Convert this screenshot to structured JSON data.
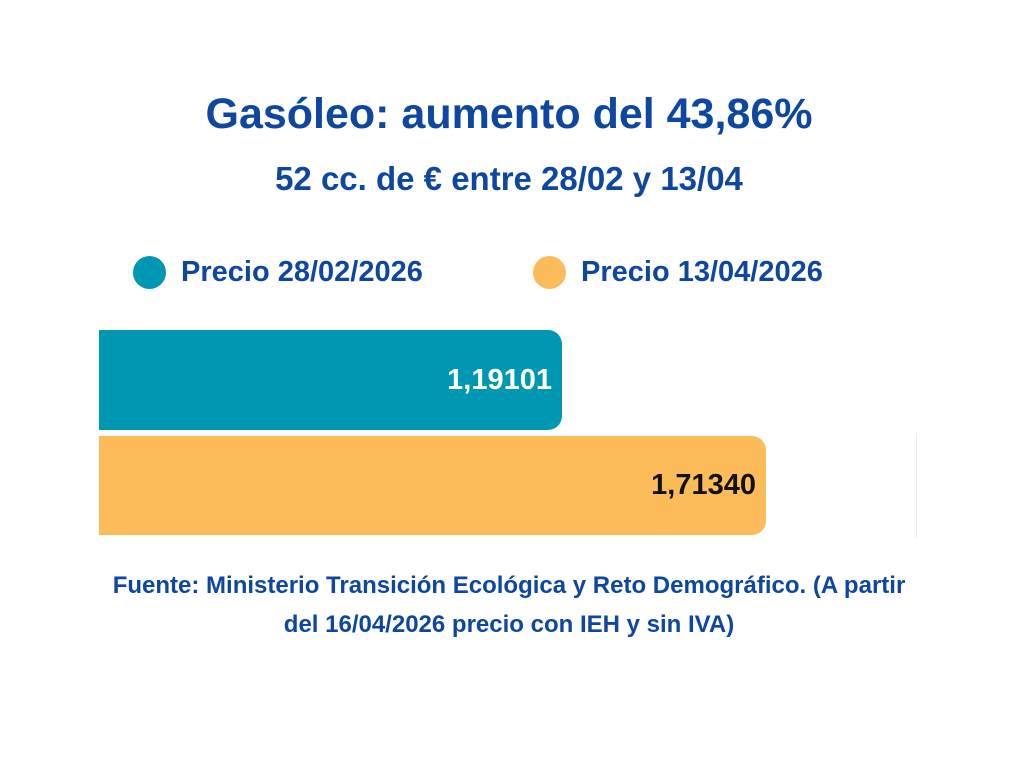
{
  "header": {
    "title": "Gasóleo: aumento del 43,86%",
    "subtitle": "52 cc. de € entre 28/02 y 13/04"
  },
  "legend": [
    {
      "label": "Precio 28/02/2026",
      "color": "#0097b2",
      "icon": "circle-dot-icon"
    },
    {
      "label": "Precio 13/04/2026",
      "color": "#fdbc5a",
      "icon": "circle-dot-icon"
    }
  ],
  "bars": [
    {
      "label": "1,19101",
      "value": 1.19101,
      "color": "#0097b2",
      "text_color": "#ffffff"
    },
    {
      "label": "1,71340",
      "value": 1.7134,
      "color": "#fdbc5a",
      "text_color": "#111111"
    }
  ],
  "footer": {
    "source": "Fuente: Ministerio Transición Ecológica y Reto Demográfico. (A partir del 16/04/2026 precio con IEH y sin IVA)"
  },
  "colors": {
    "text_primary": "#0d47a1",
    "series_1": "#0097b2",
    "series_2": "#fdbc5a",
    "background": "#ffffff"
  },
  "chart_data": {
    "type": "bar",
    "orientation": "horizontal",
    "title": "Gasóleo: aumento del 43,86%",
    "subtitle": "52 cc. de € entre 28/02 y 13/04",
    "categories": [
      "Precio 28/02/2026",
      "Precio 13/04/2026"
    ],
    "series": [
      {
        "name": "Precio 28/02/2026",
        "values": [
          1.19101
        ],
        "color": "#0097b2"
      },
      {
        "name": "Precio 13/04/2026",
        "values": [
          1.7134
        ],
        "color": "#fdbc5a"
      }
    ],
    "values": [
      1.19101,
      1.7134
    ],
    "data_labels": [
      "1,19101",
      "1,71340"
    ],
    "xlabel": "",
    "ylabel": "",
    "xlim": [
      0,
      2.1
    ],
    "grid": false,
    "legend_position": "top",
    "annotations": [
      "Fuente: Ministerio Transición Ecológica y Reto Demográfico. (A partir del 16/04/2026 precio con IEH y sin IVA)"
    ]
  }
}
